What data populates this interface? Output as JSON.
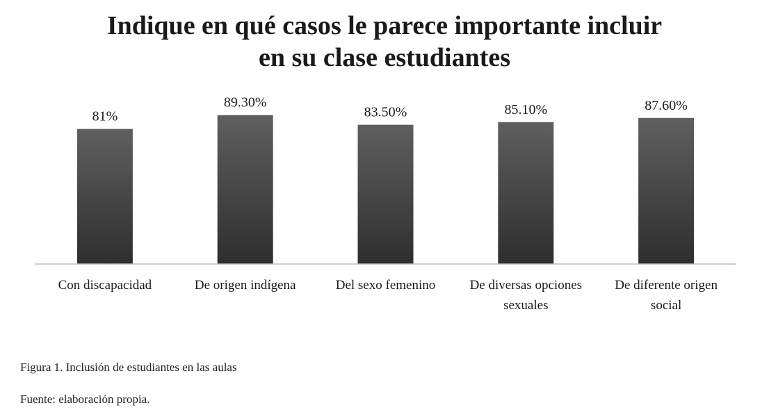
{
  "chart_data": {
    "type": "bar",
    "title_lines": [
      "Indique en qué casos le parece importante incluir",
      "en su clase estudiantes"
    ],
    "categories": [
      [
        "Con discapacidad"
      ],
      [
        "De origen indígena"
      ],
      [
        "Del sexo femenino"
      ],
      [
        "De diversas opciones",
        "sexuales"
      ],
      [
        "De diferente origen",
        "social"
      ]
    ],
    "values": [
      81,
      89.3,
      83.5,
      85.1,
      87.6
    ],
    "value_labels": [
      "81%",
      "89.30%",
      "83.50%",
      "85.10%",
      "87.60%"
    ],
    "ylim": [
      0,
      100
    ],
    "grid": false,
    "legend": "none",
    "bar_color_top": "#5f5f5f",
    "bar_color_bottom": "#2e2e2e",
    "axis_color": "#bdbdbd"
  },
  "caption": {
    "figure": "Figura 1. Inclusión de estudiantes en las aulas",
    "source": "Fuente: elaboración propia."
  }
}
